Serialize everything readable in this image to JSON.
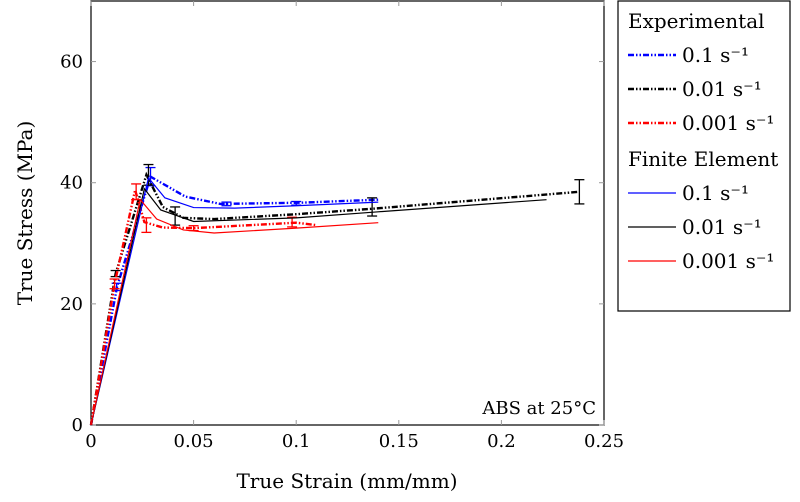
{
  "chart_data": {
    "type": "line",
    "xlabel": "True Strain (mm/mm)",
    "ylabel": "True Stress (MPa)",
    "xlim": [
      0,
      0.25
    ],
    "ylim": [
      0,
      70
    ],
    "xticks": [
      0,
      0.05,
      0.1,
      0.15,
      0.2,
      0.25
    ],
    "xtick_labels": [
      "0",
      "0.05",
      "0.1",
      "0.15",
      "0.2",
      "0.25"
    ],
    "yticks": [
      0,
      20,
      40,
      60
    ],
    "ytick_labels": [
      "0",
      "20",
      "40",
      "60"
    ],
    "grid": false,
    "annotation": "ABS at 25°C",
    "legend": {
      "placement": "outside-right",
      "groups": [
        "Experimental",
        "Finite Element"
      ]
    },
    "series": [
      {
        "name": "0.1 s⁻¹",
        "group": "Experimental",
        "color": "#0000ff",
        "style": "dash-dot-dot",
        "x": [
          0,
          0.0127,
          0.029,
          0.046,
          0.063,
          0.102,
          0.14
        ],
        "y": [
          0,
          22.8,
          41,
          37.7,
          36.5,
          36.7,
          37.2
        ],
        "errorbars": [
          {
            "x": 0.0125,
            "y": 22.8,
            "err": 0.6
          },
          {
            "x": 0.029,
            "y": 41,
            "err": 1.5
          },
          {
            "x": 0.066,
            "y": 36.5,
            "err": 0.3
          },
          {
            "x": 0.1,
            "y": 36.6,
            "err": 0.3
          }
        ]
      },
      {
        "name": "0.01 s⁻¹",
        "group": "Experimental",
        "color": "#000000",
        "style": "dash-dot-dot",
        "x": [
          0,
          0.012,
          0.027,
          0.035,
          0.045,
          0.06,
          0.1,
          0.137,
          0.238
        ],
        "y": [
          0,
          25,
          41.3,
          36,
          34.2,
          34,
          34.8,
          35.7,
          38.5
        ],
        "errorbars": [
          {
            "x": 0.012,
            "y": 25,
            "err": 0.5
          },
          {
            "x": 0.028,
            "y": 41.3,
            "err": 1.7
          },
          {
            "x": 0.041,
            "y": 34.5,
            "err": 1.5
          },
          {
            "x": 0.137,
            "y": 36,
            "err": 1.5
          },
          {
            "x": 0.238,
            "y": 38.5,
            "err": 2
          }
        ]
      },
      {
        "name": "0.001 s⁻¹",
        "group": "Experimental",
        "color": "#ff0000",
        "style": "dash-dot-dot",
        "x": [
          0,
          0.0115,
          0.0215,
          0.026,
          0.035,
          0.05,
          0.1,
          0.11
        ],
        "y": [
          0,
          23.3,
          38.8,
          33.5,
          32.6,
          32.5,
          33.4,
          33
        ],
        "errorbars": [
          {
            "x": 0.0115,
            "y": 23.3,
            "err": 0.8
          },
          {
            "x": 0.022,
            "y": 38.5,
            "err": 1.3
          },
          {
            "x": 0.027,
            "y": 33,
            "err": 1.2
          },
          {
            "x": 0.05,
            "y": 32.5,
            "err": 0.4
          },
          {
            "x": 0.098,
            "y": 33.5,
            "err": 0.8
          }
        ]
      },
      {
        "name": "0.1 s⁻¹",
        "group": "Finite Element",
        "color": "#0000ff",
        "style": "solid",
        "x": [
          0,
          0.028,
          0.036,
          0.05,
          0.07,
          0.1,
          0.14
        ],
        "y": [
          0,
          40.8,
          37.5,
          35.9,
          35.8,
          36.2,
          36.8
        ]
      },
      {
        "name": "0.01 s⁻¹",
        "group": "Finite Element",
        "color": "#000000",
        "style": "solid",
        "x": [
          0,
          0.026,
          0.034,
          0.05,
          0.1,
          0.14,
          0.222
        ],
        "y": [
          0,
          39,
          35.5,
          33.6,
          34.2,
          35.2,
          37.2
        ]
      },
      {
        "name": "0.001 s⁻¹",
        "group": "Finite Element",
        "color": "#ff0000",
        "style": "solid",
        "x": [
          0,
          0.024,
          0.032,
          0.045,
          0.06,
          0.1,
          0.14
        ],
        "y": [
          0,
          37.2,
          34,
          32.2,
          31.7,
          32.5,
          33.4
        ]
      }
    ]
  }
}
